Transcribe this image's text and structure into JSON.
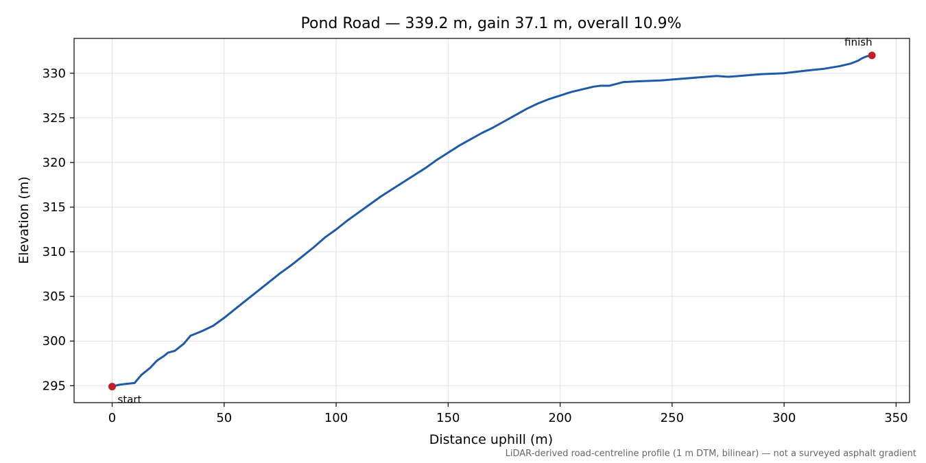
{
  "chart_data": {
    "type": "line",
    "title": "Pond Road — 339.2 m, gain 37.1 m, overall 10.9%",
    "xlabel": "Distance uphill (m)",
    "ylabel": "Elevation (m)",
    "footnote": "LiDAR-derived road-centreline profile (1 m DTM, bilinear) — not a surveyed asphalt gradient",
    "xlim": [
      -17,
      356
    ],
    "ylim": [
      293.1,
      333.9
    ],
    "xticks": [
      0,
      50,
      100,
      150,
      200,
      250,
      300,
      350
    ],
    "yticks": [
      295,
      300,
      305,
      310,
      315,
      320,
      325,
      330
    ],
    "grid": true,
    "line_color": "#1f5aa8",
    "marker_color": "#c0202a",
    "series": [
      {
        "x": [
          0,
          3,
          6,
          10,
          13,
          17,
          20,
          23,
          25,
          28,
          32,
          34,
          35,
          36,
          40,
          45,
          50,
          55,
          60,
          65,
          70,
          75,
          80,
          85,
          90,
          95,
          100,
          105,
          110,
          115,
          120,
          125,
          130,
          135,
          140,
          145,
          150,
          155,
          160,
          165,
          170,
          175,
          180,
          185,
          190,
          195,
          200,
          205,
          210,
          215,
          218,
          222,
          225,
          228,
          235,
          245,
          255,
          265,
          270,
          275,
          280,
          285,
          290,
          300,
          310,
          318,
          325,
          330,
          333,
          335,
          337,
          339.2
        ],
        "y": [
          294.9,
          295.1,
          295.2,
          295.3,
          296.2,
          297.0,
          297.8,
          298.3,
          298.7,
          298.9,
          299.7,
          300.3,
          300.6,
          300.7,
          301.1,
          301.7,
          302.6,
          303.6,
          304.6,
          305.6,
          306.6,
          307.6,
          308.5,
          309.5,
          310.5,
          311.6,
          312.5,
          313.5,
          314.4,
          315.3,
          316.2,
          317.0,
          317.8,
          318.6,
          319.4,
          320.3,
          321.1,
          321.9,
          322.6,
          323.3,
          323.9,
          324.6,
          325.3,
          326.0,
          326.6,
          327.1,
          327.5,
          327.9,
          328.2,
          328.5,
          328.6,
          328.6,
          328.8,
          329.0,
          329.1,
          329.2,
          329.4,
          329.6,
          329.7,
          329.6,
          329.7,
          329.8,
          329.9,
          330.0,
          330.3,
          330.5,
          330.8,
          331.1,
          331.4,
          331.7,
          331.9,
          332.0
        ]
      }
    ],
    "annotations": [
      {
        "label": "start",
        "x": 0,
        "y": 294.9
      },
      {
        "label": "finish",
        "x": 339.2,
        "y": 332.0
      }
    ]
  }
}
